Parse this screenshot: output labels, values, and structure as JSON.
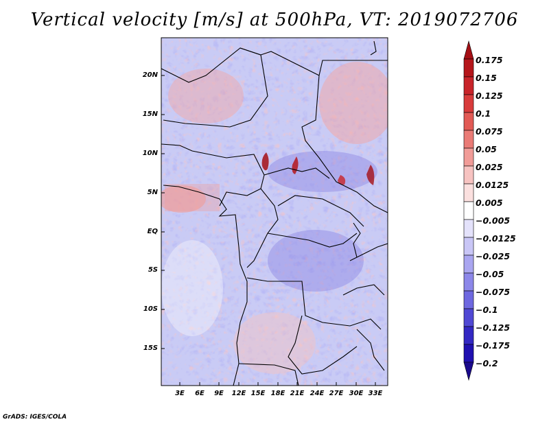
{
  "title": "Vertical velocity [m/s] at 500hPa, VT: 2019072706",
  "footer": "GrADS: IGES/COLA",
  "y_labels": [
    "20N",
    "15N",
    "10N",
    "5N",
    "EQ",
    "5S",
    "10S",
    "15S"
  ],
  "x_labels": [
    "3E",
    "6E",
    "9E",
    "12E",
    "15E",
    "18E",
    "21E",
    "24E",
    "27E",
    "30E",
    "33E"
  ],
  "colorbar": {
    "labels": [
      "0.175",
      "0.15",
      "0.125",
      "0.1",
      "0.075",
      "0.05",
      "0.025",
      "0.0125",
      "0.005",
      "−0.005",
      "−0.0125",
      "−0.025",
      "−0.05",
      "−0.075",
      "−0.1",
      "−0.125",
      "−0.175",
      "−0.2"
    ],
    "colors": [
      "#a50f15",
      "#b5161b",
      "#c8242a",
      "#d83b3b",
      "#e25a55",
      "#ea7b76",
      "#f19c98",
      "#f7c3c1",
      "#fbe0df",
      "#ffffff",
      "#e4e2fb",
      "#c9c6f6",
      "#aaa6f0",
      "#8c87e9",
      "#6e68e0",
      "#5048d4",
      "#3328c3",
      "#2010b0",
      "#1a0a8c"
    ]
  }
}
